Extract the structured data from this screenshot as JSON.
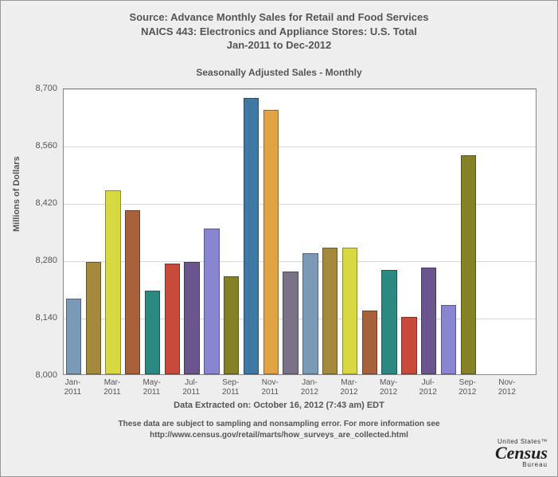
{
  "title": {
    "line1": "Source: Advance Monthly Sales for Retail and Food Services",
    "line2": "NAICS 443: Electronics and Appliance Stores: U.S. Total",
    "line3": "Jan-2011 to Dec-2012",
    "fontsize": 13,
    "color": "#555555"
  },
  "subtitle": {
    "text": "Seasonally Adjusted Sales - Monthly",
    "fontsize": 12,
    "color": "#555555"
  },
  "chart": {
    "type": "bar",
    "background_color": "#ffffff",
    "plot_border_color": "#888888",
    "grid_color": "#d8d8d8",
    "container_background": "#eeeeee",
    "ylabel": "Millions of Dollars",
    "ylabel_fontsize": 11,
    "ylim": [
      8000,
      8700
    ],
    "yticks": [
      8000,
      8140,
      8280,
      8420,
      8560,
      8700
    ],
    "ytick_labels": [
      "8,000",
      "8,140",
      "8,280",
      "8,420",
      "8,560",
      "8,700"
    ],
    "xtick_labels": [
      "Jan-\n2011",
      "Mar-\n2011",
      "May-\n2011",
      "Jul-\n2011",
      "Sep-\n2011",
      "Nov-\n2011",
      "Jan-\n2012",
      "Mar-\n2012",
      "May-\n2012",
      "Jul-\n2012",
      "Sep-\n2012",
      "Nov-\n2012"
    ],
    "xtick_positions": [
      0,
      2,
      4,
      6,
      8,
      10,
      12,
      14,
      16,
      18,
      20,
      22
    ],
    "bar_width_ratio": 0.78,
    "categories": [
      "Jan-2011",
      "Feb-2011",
      "Mar-2011",
      "Apr-2011",
      "May-2011",
      "Jun-2011",
      "Jul-2011",
      "Aug-2011",
      "Sep-2011",
      "Oct-2011",
      "Nov-2011",
      "Dec-2011",
      "Jan-2012",
      "Feb-2012",
      "Mar-2012",
      "Apr-2012",
      "May-2012",
      "Jun-2012",
      "Jul-2012",
      "Aug-2012",
      "Sep-2012",
      "Oct-2012",
      "Nov-2012",
      "Dec-2012"
    ],
    "values": [
      8185,
      8275,
      8450,
      8400,
      8205,
      8270,
      8275,
      8355,
      8240,
      8675,
      8645,
      8250,
      8295,
      8310,
      8310,
      8155,
      8255,
      8140,
      8260,
      8170,
      8535,
      null,
      null,
      null
    ],
    "bar_colors": [
      "#7a9ab8",
      "#a58a3d",
      "#d8d942",
      "#a8613a",
      "#2b8982",
      "#c84a3a",
      "#6a558f",
      "#8a85d0",
      "#848127",
      "#3f78a3",
      "#e0a445",
      "#7a7286",
      "#7a9ab8",
      "#a58a3d",
      "#d8d942",
      "#a8613a",
      "#2b8982",
      "#c84a3a",
      "#6a558f",
      "#8a85d0",
      "#848127",
      "#3f78a3",
      "#e0a445",
      "#7a7286"
    ],
    "bar_border_color": "rgba(0,0,0,0.35)"
  },
  "footer": {
    "extracted": "Data Extracted on: October 16, 2012 (7:43 am) EDT",
    "note_line1": "These data are subject to sampling and nonsampling error. For more information see",
    "note_line2": "http://www.census.gov/retail/marts/how_surveys_are_collected.html",
    "fontsize": 10,
    "color": "#555555"
  },
  "logo": {
    "top": "United States",
    "main": "Census",
    "sub": "Bureau"
  }
}
